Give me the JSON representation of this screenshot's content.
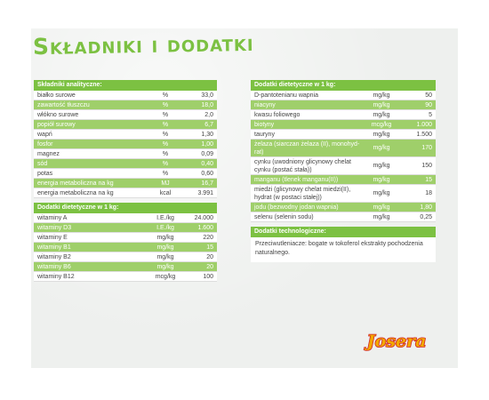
{
  "title": "Składniki i dodatki",
  "analytic": {
    "header": "Składniki analityczne:",
    "rows": [
      {
        "name": "białko surowe",
        "unit": "%",
        "value": "33,0"
      },
      {
        "name": "zawartość tłuszczu",
        "unit": "%",
        "value": "18,0"
      },
      {
        "name": "włókno surowe",
        "unit": "%",
        "value": "2,0"
      },
      {
        "name": "popiół surowy",
        "unit": "%",
        "value": "6,7"
      },
      {
        "name": "wapń",
        "unit": "%",
        "value": "1,30"
      },
      {
        "name": "fosfor",
        "unit": "%",
        "value": "1,00"
      },
      {
        "name": "magnez",
        "unit": "%",
        "value": "0,09"
      },
      {
        "name": "sód",
        "unit": "%",
        "value": "0,40"
      },
      {
        "name": "potas",
        "unit": "%",
        "value": "0,60"
      },
      {
        "name": "energia metaboliczna na kg",
        "unit": "MJ",
        "value": "16,7"
      },
      {
        "name": "energia metaboliczna na kg",
        "unit": "kcal",
        "value": "3.991"
      }
    ]
  },
  "vitamins": {
    "header": "Dodatki dietetyczne w 1 kg:",
    "rows": [
      {
        "name": "witaminy A",
        "unit": "I.E./kg",
        "value": "24.000"
      },
      {
        "name": "witaminy D3",
        "unit": "I.E./kg",
        "value": "1.600"
      },
      {
        "name": "witaminy E",
        "unit": "mg/kg",
        "value": "220"
      },
      {
        "name": "witaminy B1",
        "unit": "mg/kg",
        "value": "15"
      },
      {
        "name": "witaminy B2",
        "unit": "mg/kg",
        "value": "20"
      },
      {
        "name": "witaminy B6",
        "unit": "mg/kg",
        "value": "20"
      },
      {
        "name": "witaminy B12",
        "unit": "mcg/kg",
        "value": "100"
      }
    ]
  },
  "additives": {
    "header": "Dodatki dietetyczne w 1 kg:",
    "rows": [
      {
        "name": "D-pantotenianu wapnia",
        "unit": "mg/kg",
        "value": "50"
      },
      {
        "name": "niacyny",
        "unit": "mg/kg",
        "value": "90"
      },
      {
        "name": "kwasu foliowego",
        "unit": "mg/kg",
        "value": "5"
      },
      {
        "name": "biotyny",
        "unit": "mcg/kg",
        "value": "1.000"
      },
      {
        "name": "tauryny",
        "unit": "mg/kg",
        "value": "1.500"
      },
      {
        "name": "żelaza (siarczan żelaza (II), monohyd-rat)",
        "unit": "mg/kg",
        "value": "170"
      },
      {
        "name": "cynku (uwodniony glicynowy chelat cynku (postać stała))",
        "unit": "mg/kg",
        "value": "150"
      },
      {
        "name": "manganu (tlenek manganu(II))",
        "unit": "mg/kg",
        "value": "15"
      },
      {
        "name": "miedzi (glicynowy chelat miedzi(II), hydrat (w postaci stałej))",
        "unit": "mg/kg",
        "value": "18"
      },
      {
        "name": "jodu (bezwodny jodan wapnia)",
        "unit": "mg/kg",
        "value": "1,80"
      },
      {
        "name": "selenu (selenin sodu)",
        "unit": "mg/kg",
        "value": "0,25"
      }
    ]
  },
  "technological": {
    "header": "Dodatki technologiczne:",
    "text": "Przeciwutleniacze: bogate w tokoferol ekstrakty pochodzenia naturalnego."
  },
  "logo": {
    "text": "Josera"
  },
  "colors": {
    "accent": "#7cc142",
    "alt_row": "#9fcf6a",
    "logo_fill": "#f2a900",
    "logo_stroke": "#d0202a"
  }
}
